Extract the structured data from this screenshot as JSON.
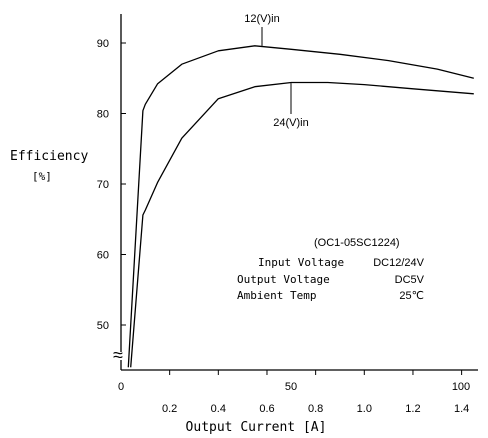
{
  "chart_data": {
    "type": "line",
    "ylabel": "Efficiency",
    "ylabel_unit": "[%]",
    "xlabel": "Output Current [A]",
    "xlim": [
      0,
      1.5
    ],
    "ylim": [
      44,
      95
    ],
    "yticks": [
      "50",
      "60",
      "70",
      "80",
      "90"
    ],
    "x_ticks_current": [
      "0.2",
      "0.4",
      "0.6",
      "0.8",
      "1.0",
      "1.2",
      "1.4"
    ],
    "x_ticks_load": [
      "0",
      "50",
      "100"
    ],
    "axis_break": "≈",
    "series": [
      {
        "name": "12(V)in",
        "x": [
          0.03,
          0.09,
          0.1,
          0.15,
          0.25,
          0.4,
          0.55,
          0.7,
          0.9,
          1.1,
          1.3,
          1.45
        ],
        "y": [
          44,
          80.4,
          81.3,
          84.2,
          87.0,
          88.9,
          89.6,
          89.1,
          88.4,
          87.5,
          86.3,
          85.0
        ]
      },
      {
        "name": "24(V)in",
        "x": [
          0.04,
          0.09,
          0.1,
          0.15,
          0.25,
          0.4,
          0.55,
          0.7,
          0.85,
          1.0,
          1.2,
          1.45
        ],
        "y": [
          44,
          65.6,
          66.3,
          70.2,
          76.5,
          82.1,
          83.8,
          84.4,
          84.4,
          84.1,
          83.5,
          82.8
        ]
      }
    ],
    "annotations": {
      "model": "(OC1-05SC1224)",
      "spec_rows": [
        {
          "label": "Input Voltage",
          "value": "DC12/24V"
        },
        {
          "label": "Output Voltage",
          "value": "DC5V"
        },
        {
          "label": "Ambient Temp",
          "value": "25℃"
        }
      ]
    }
  }
}
